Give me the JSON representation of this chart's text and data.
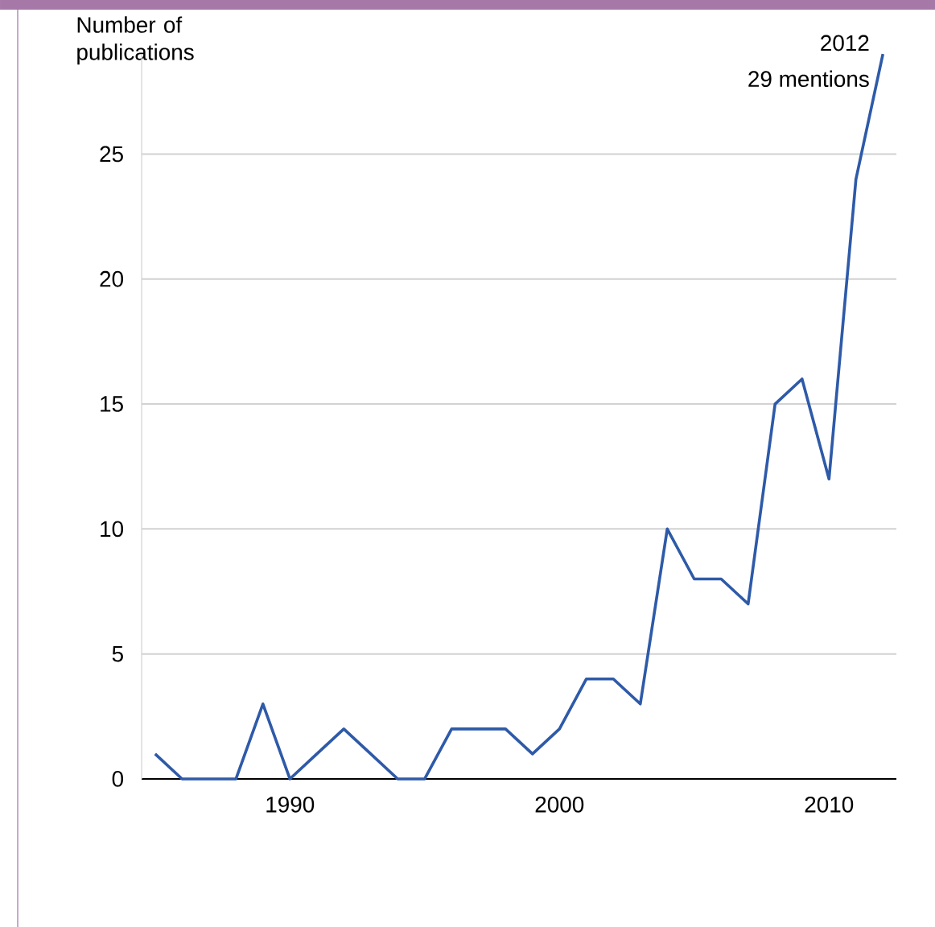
{
  "chart_data": {
    "type": "line",
    "ylabel": "Number of publications",
    "x": [
      1985,
      1986,
      1987,
      1988,
      1989,
      1990,
      1991,
      1992,
      1993,
      1994,
      1995,
      1996,
      1997,
      1998,
      1999,
      2000,
      2001,
      2002,
      2003,
      2004,
      2005,
      2006,
      2007,
      2008,
      2009,
      2010,
      2011,
      2012
    ],
    "series": [
      {
        "color": "#2e5aa8",
        "values": [
          1,
          0,
          0,
          0,
          3,
          0,
          1,
          2,
          1,
          0,
          0,
          2,
          2,
          2,
          1,
          2,
          4,
          4,
          3,
          10,
          8,
          8,
          7,
          15,
          16,
          12,
          24,
          29
        ]
      }
    ],
    "xlim": [
      1984.5,
      2012.5
    ],
    "ylim": [
      0,
      29
    ],
    "xticks": [
      1990,
      2000,
      2010
    ],
    "yticks": [
      0,
      5,
      10,
      15,
      20,
      25
    ],
    "grid": "y",
    "marker": "none",
    "line_style": "solid",
    "annotations": [
      {
        "text": "2012",
        "x": 2012,
        "y": 29
      },
      {
        "text": "29 mentions",
        "x": 2012,
        "y": 29
      }
    ]
  }
}
